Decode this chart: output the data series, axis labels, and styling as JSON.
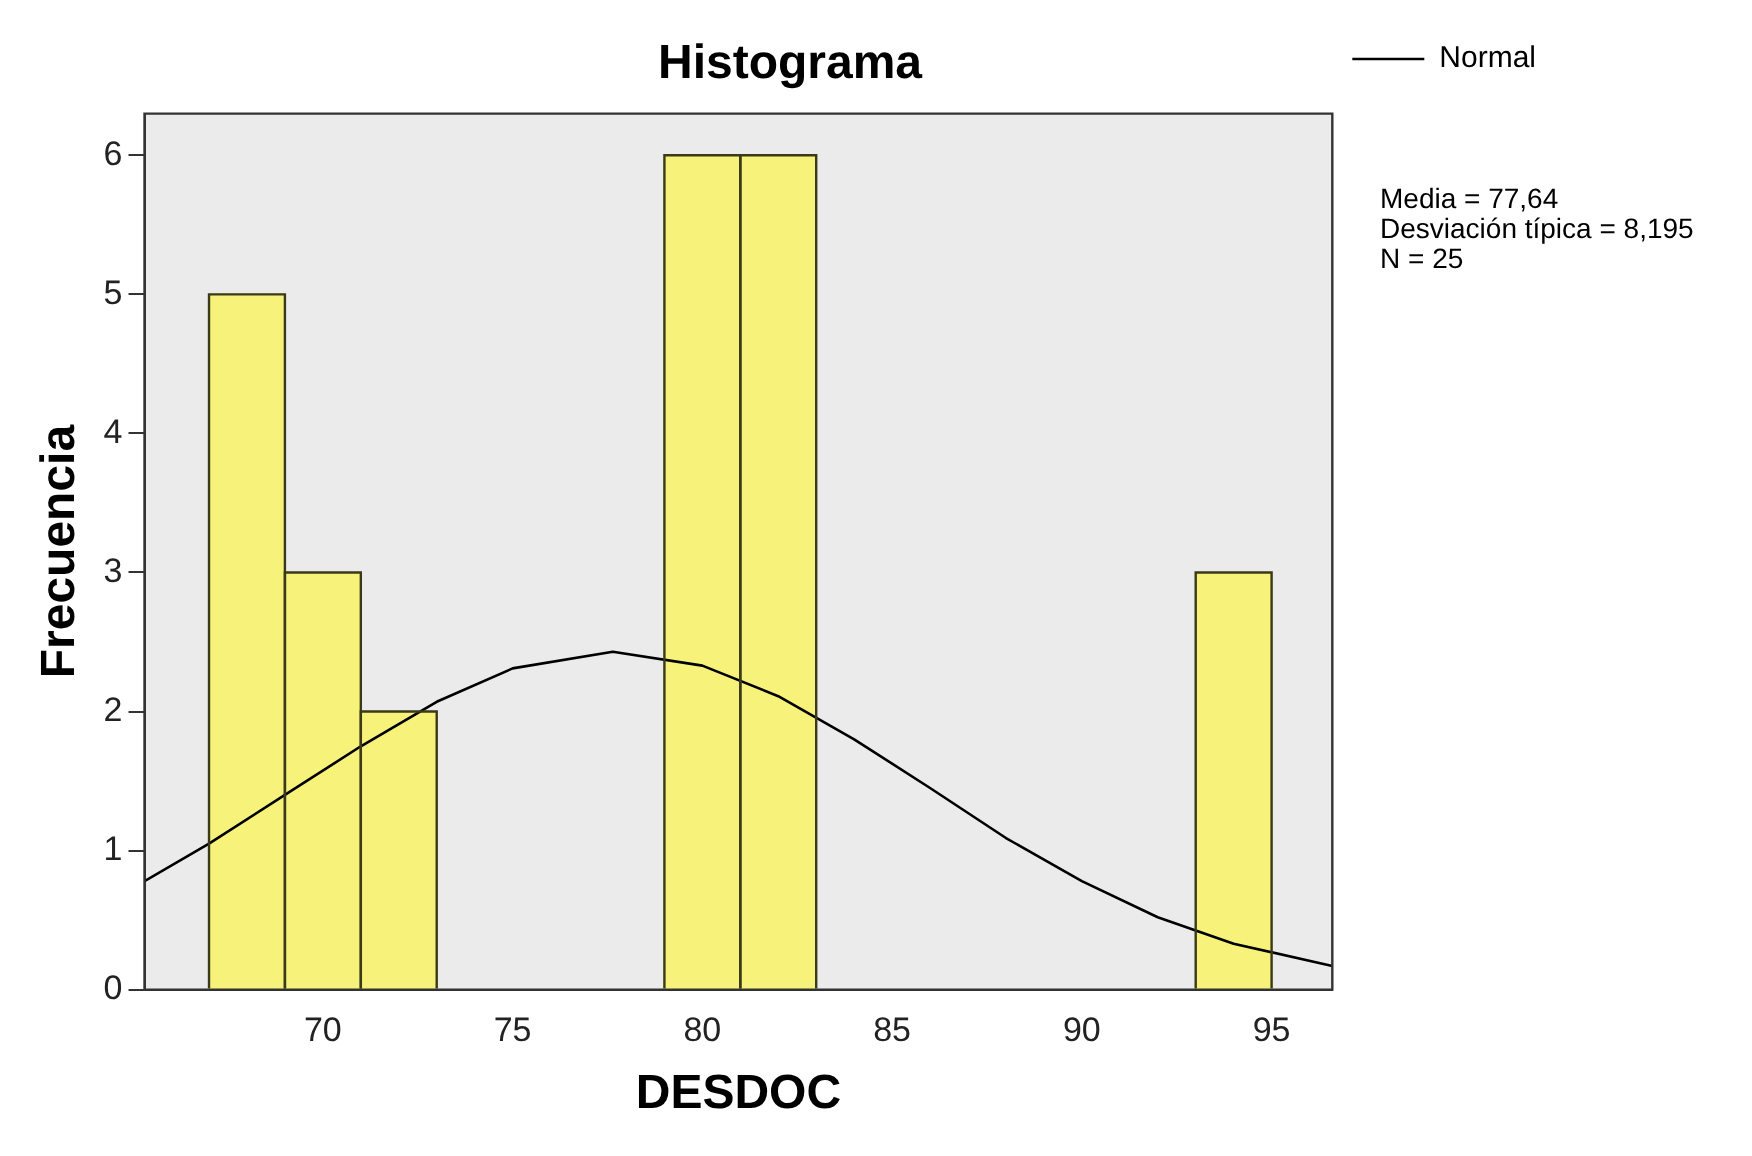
{
  "chart_data": {
    "type": "histogram",
    "title": "Histograma",
    "xlabel": "DESDOC",
    "ylabel": "Frecuencia",
    "bins": [
      67,
      69,
      71,
      73,
      75,
      77,
      79,
      81,
      83,
      85,
      87,
      89,
      91,
      93,
      95
    ],
    "values": [
      5,
      3,
      2,
      0,
      0,
      0,
      6,
      6,
      0,
      0,
      0,
      0,
      0,
      3
    ],
    "color": "#f7f27a",
    "series": [
      {
        "type": "line",
        "name": "Normal",
        "color": "#000000",
        "x": [
          65.3,
          67,
          69,
          71,
          73,
          75,
          77.64,
          80,
          82,
          84,
          86,
          88,
          90,
          92,
          94,
          96.6
        ],
        "values": [
          0.78,
          1.05,
          1.4,
          1.75,
          2.07,
          2.31,
          2.43,
          2.33,
          2.11,
          1.8,
          1.45,
          1.09,
          0.78,
          0.52,
          0.33,
          0.17
        ]
      }
    ],
    "xlim": [
      65.3,
      96.6
    ],
    "xticks": [
      70,
      75,
      80,
      85,
      90,
      95
    ],
    "ylim": [
      0,
      6.3
    ],
    "yticks": [
      0,
      1,
      2,
      3,
      4,
      5,
      6
    ],
    "grid": false,
    "legend": "top right",
    "marker": "none",
    "line_style": "solid",
    "annotations": [
      "Media = 77,64",
      "Desviación típica = 8,195",
      "N = 25"
    ]
  }
}
